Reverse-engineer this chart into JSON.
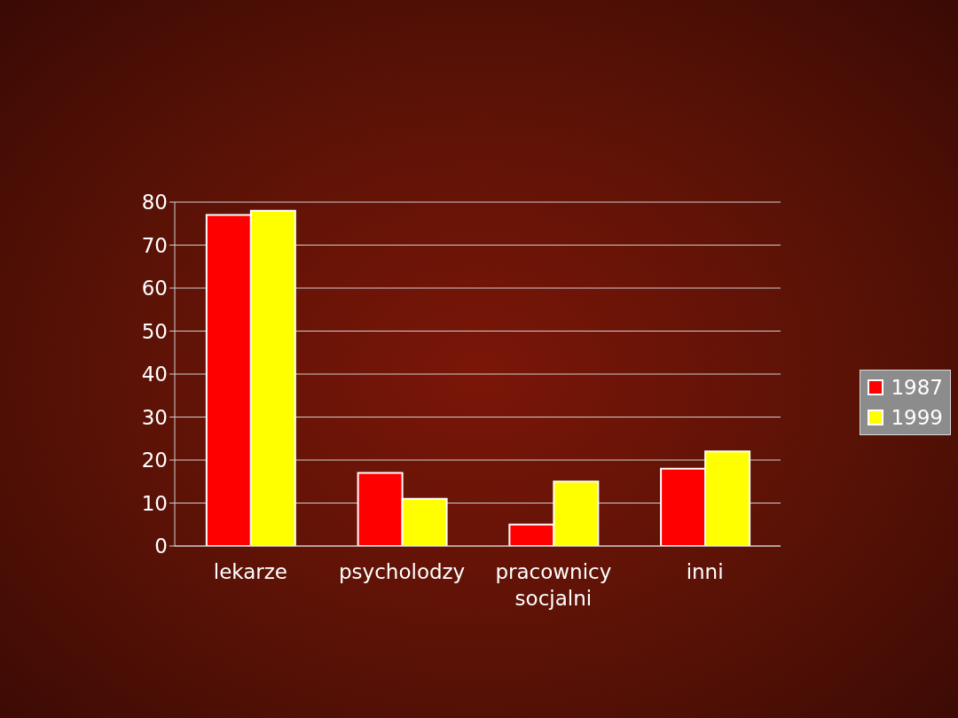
{
  "chart_data": {
    "type": "bar",
    "categories": [
      "lekarze",
      "psycholodzy",
      "pracownicy socjalni",
      "inni"
    ],
    "series": [
      {
        "name": "1987",
        "color": "#ff0000",
        "values": [
          77,
          17,
          5,
          18
        ]
      },
      {
        "name": "1999",
        "color": "#ffff00",
        "values": [
          78,
          11,
          15,
          22
        ]
      }
    ],
    "ylim": [
      0,
      80
    ],
    "yticks": [
      0,
      10,
      20,
      30,
      40,
      50,
      60,
      70,
      80
    ],
    "grid": "y",
    "legend": "right"
  }
}
